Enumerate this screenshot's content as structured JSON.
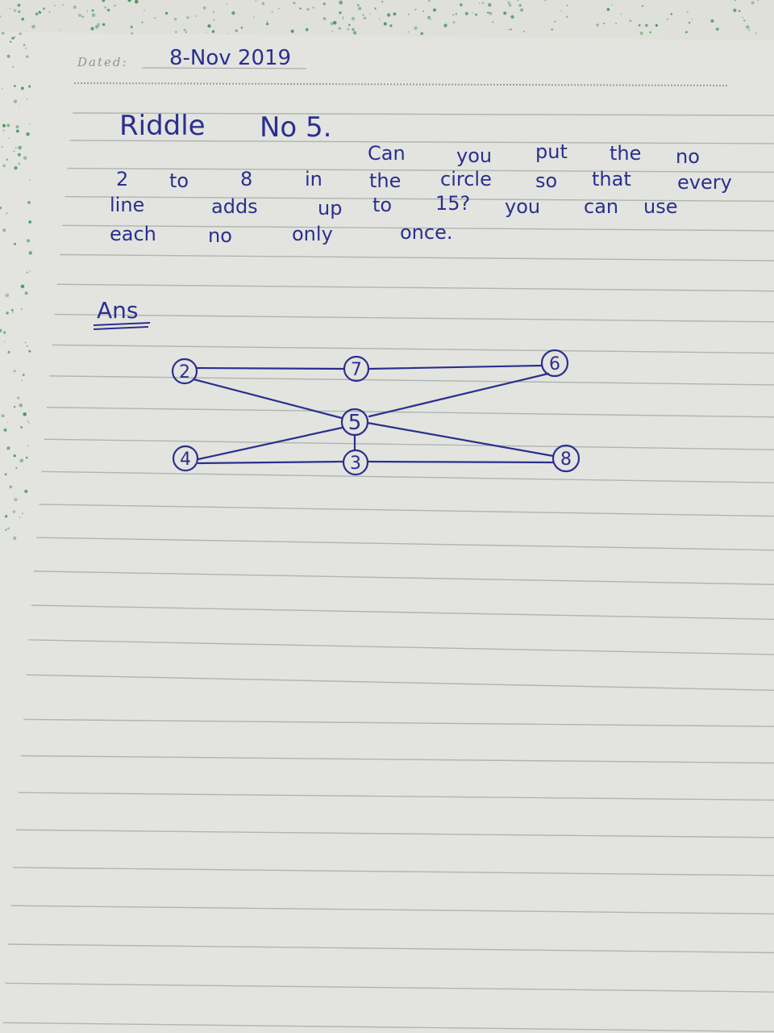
{
  "header": {
    "dated_label": "Dated:",
    "date": "8-Nov 2019"
  },
  "riddle": {
    "title": "Riddle",
    "number": "No 5.",
    "lines": [
      [
        "Can",
        "you",
        "put",
        "the",
        "no"
      ],
      [
        "2",
        "to",
        "8",
        "in",
        "the",
        "circle",
        "so",
        "that",
        "every"
      ],
      [
        "line",
        "adds",
        "up",
        "to",
        "15?",
        "you",
        "can",
        "use"
      ],
      [
        "each",
        "no",
        "only",
        "once."
      ]
    ]
  },
  "answer": {
    "label": "Ans",
    "nodes": [
      {
        "id": "top-left",
        "value": "2"
      },
      {
        "id": "top-middle",
        "value": "7"
      },
      {
        "id": "top-right",
        "value": "6"
      },
      {
        "id": "center",
        "value": "5"
      },
      {
        "id": "bottom-left",
        "value": "4"
      },
      {
        "id": "bottom-middle",
        "value": "3"
      },
      {
        "id": "bottom-right",
        "value": "8"
      }
    ]
  },
  "colors": {
    "ink": "#2b2f8f",
    "rule": "#aeb5b0",
    "paper": "#e2e3de",
    "speckle": "#2e8a4a"
  }
}
